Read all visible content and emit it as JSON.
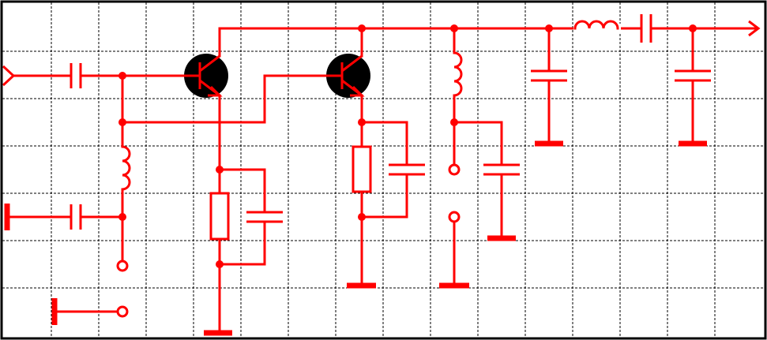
{
  "schematic": {
    "wire_color": "#ff0000",
    "grid_color": "#000000",
    "frame_color": "#000000",
    "background": "#ffffff",
    "components": [
      {
        "type": "input-terminal",
        "icon": "input-arrow-icon"
      },
      {
        "type": "capacitor",
        "role": "input-coupling"
      },
      {
        "type": "capacitor",
        "role": "bias-decoupling"
      },
      {
        "type": "inductor",
        "role": "bias-choke"
      },
      {
        "type": "npn-transistor",
        "role": "stage-1"
      },
      {
        "type": "resistor",
        "role": "stage-1-emitter"
      },
      {
        "type": "capacitor",
        "role": "stage-1-emitter-bypass"
      },
      {
        "type": "npn-transistor",
        "role": "stage-2"
      },
      {
        "type": "resistor",
        "role": "stage-2-emitter"
      },
      {
        "type": "capacitor",
        "role": "stage-2-emitter-bypass"
      },
      {
        "type": "inductor",
        "role": "collector-load"
      },
      {
        "type": "capacitor",
        "role": "collector-bypass"
      },
      {
        "type": "capacitor",
        "role": "output-shunt-1"
      },
      {
        "type": "inductor",
        "role": "output-series"
      },
      {
        "type": "capacitor",
        "role": "output-series"
      },
      {
        "type": "capacitor",
        "role": "output-shunt-2"
      },
      {
        "type": "output-terminal",
        "icon": "output-arrow-icon"
      }
    ]
  }
}
